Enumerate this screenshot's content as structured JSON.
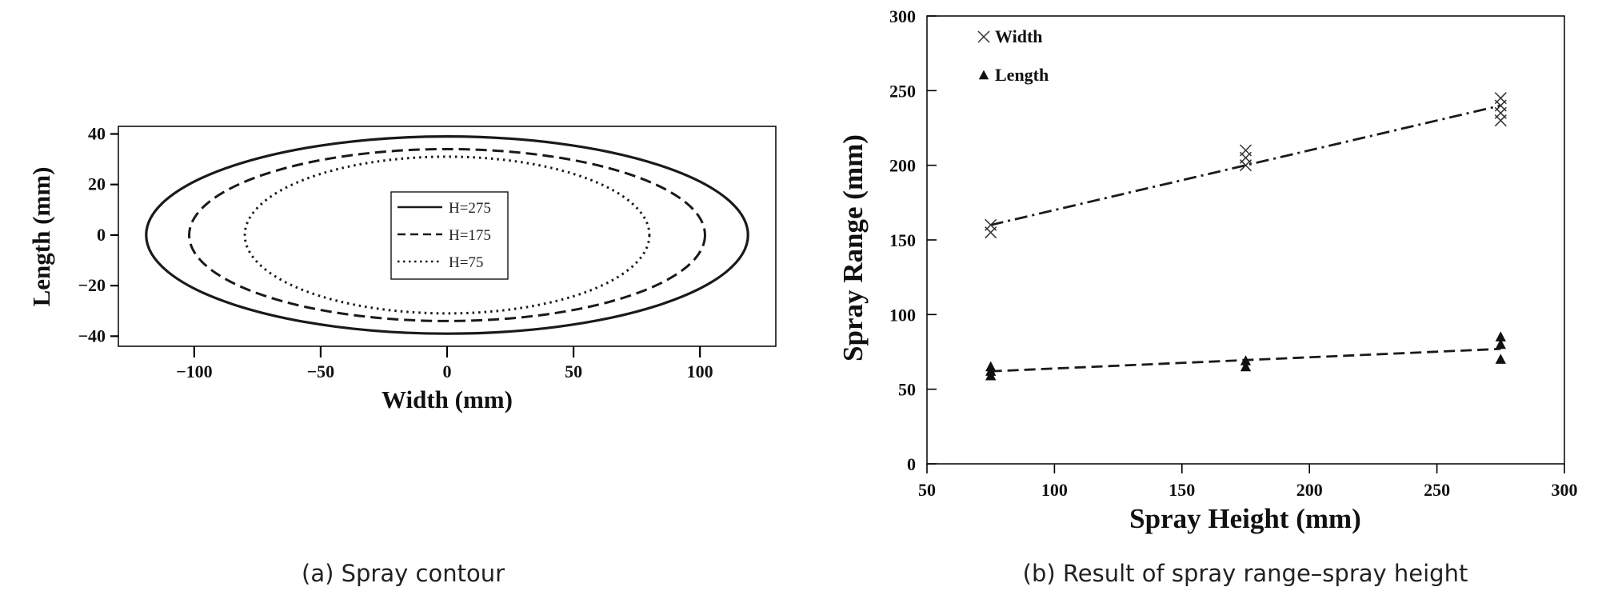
{
  "chart_data": [
    {
      "type": "line",
      "subtitle": "(a) Spray contour",
      "xlabel": "Width (mm)",
      "ylabel": "Length (mm)",
      "xlim": [
        -130,
        130
      ],
      "ylim": [
        -44,
        43
      ],
      "xticks": [
        -100,
        -50,
        0,
        50,
        100
      ],
      "yticks": [
        -40,
        -20,
        0,
        20,
        40
      ],
      "grid": false,
      "legend_position": "center",
      "series": [
        {
          "name": "H=275",
          "shape": "ellipse",
          "line_style": "solid",
          "center": [
            0,
            0
          ],
          "semi_axis_width": 119,
          "semi_axis_length": 39
        },
        {
          "name": "H=175",
          "shape": "ellipse",
          "line_style": "dashed",
          "center": [
            0,
            0
          ],
          "semi_axis_width": 102,
          "semi_axis_length": 34
        },
        {
          "name": "H=75",
          "shape": "ellipse",
          "line_style": "dotted",
          "center": [
            0,
            0
          ],
          "semi_axis_width": 80,
          "semi_axis_length": 31
        }
      ]
    },
    {
      "type": "scatter",
      "subtitle": "(b) Result of spray range–spray height",
      "xlabel": "Spray Height (mm)",
      "ylabel": "Spray Range (mm)",
      "xlim": [
        50,
        300
      ],
      "ylim": [
        0,
        300
      ],
      "xticks": [
        50,
        100,
        150,
        200,
        250,
        300
      ],
      "yticks": [
        0,
        50,
        100,
        150,
        200,
        250,
        300
      ],
      "grid": false,
      "legend_position": "top-left",
      "series": [
        {
          "name": "Width",
          "marker": "x",
          "x": [
            75,
            75,
            175,
            175,
            175,
            275,
            275,
            275,
            275
          ],
          "y": [
            155,
            160,
            200,
            205,
            210,
            230,
            235,
            240,
            245
          ],
          "trendline": {
            "style": "dash-dot",
            "x": [
              75,
              275
            ],
            "y": [
              160,
              240
            ]
          }
        },
        {
          "name": "Length",
          "marker": "triangle",
          "x": [
            75,
            75,
            75,
            175,
            175,
            275,
            275,
            275
          ],
          "y": [
            59,
            62,
            65,
            65,
            69,
            70,
            80,
            85
          ],
          "trendline": {
            "style": "dashed",
            "x": [
              75,
              275
            ],
            "y": [
              62,
              77
            ]
          }
        }
      ]
    }
  ]
}
